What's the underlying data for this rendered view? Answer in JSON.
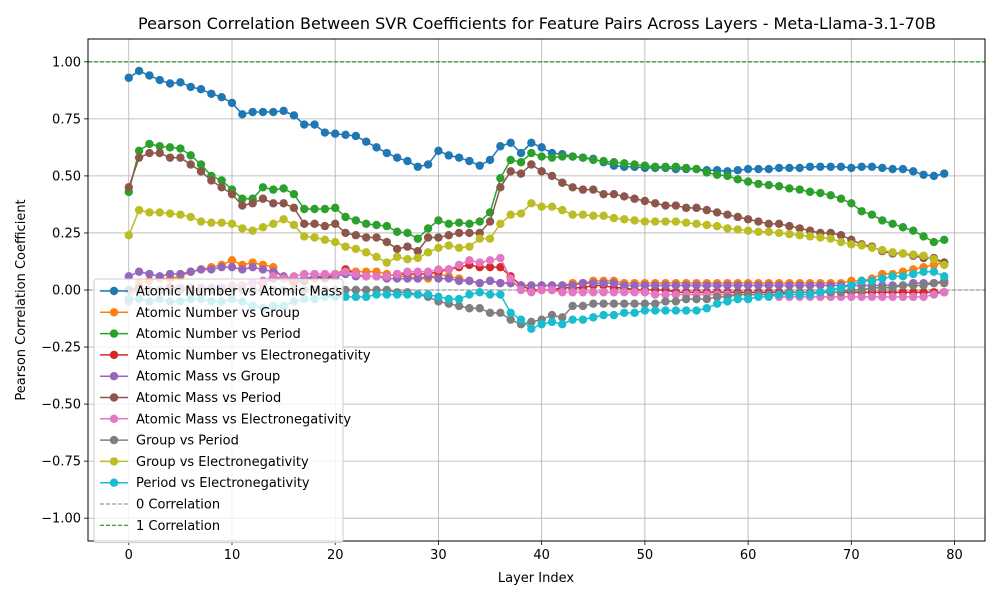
{
  "chart_data": {
    "type": "line",
    "title": "Pearson Correlation Between SVR Coefficients for Feature Pairs Across Layers - Meta-Llama-3.1-70B",
    "xlabel": "Layer Index",
    "ylabel": "Pearson Correlation Coefficient",
    "xlim": [
      -3.95,
      82.95
    ],
    "ylim": [
      -1.1,
      1.1
    ],
    "xticks": [
      0,
      10,
      20,
      30,
      40,
      50,
      60,
      70,
      80
    ],
    "xtick_labels": [
      "0",
      "10",
      "20",
      "30",
      "40",
      "50",
      "60",
      "70",
      "80"
    ],
    "yticks": [
      -1.0,
      -0.75,
      -0.5,
      -0.25,
      0.0,
      0.25,
      0.5,
      0.75,
      1.0
    ],
    "ytick_labels": [
      "−1.00",
      "−0.75",
      "−0.50",
      "−0.25",
      "0.00",
      "0.25",
      "0.50",
      "0.75",
      "1.00"
    ],
    "grid": true,
    "legend_position": "lower-left",
    "x_start": 0,
    "series": [
      {
        "name": "Atomic Number vs Atomic Mass",
        "color": "#1f77b4",
        "values": [
          0.93,
          0.96,
          0.94,
          0.92,
          0.905,
          0.91,
          0.89,
          0.88,
          0.86,
          0.845,
          0.82,
          0.77,
          0.78,
          0.78,
          0.78,
          0.785,
          0.765,
          0.725,
          0.725,
          0.69,
          0.685,
          0.68,
          0.675,
          0.65,
          0.625,
          0.6,
          0.58,
          0.565,
          0.54,
          0.55,
          0.61,
          0.59,
          0.58,
          0.565,
          0.545,
          0.57,
          0.63,
          0.645,
          0.6,
          0.645,
          0.625,
          0.6,
          0.595,
          0.585,
          0.58,
          0.575,
          0.56,
          0.545,
          0.54,
          0.54,
          0.535,
          0.535,
          0.535,
          0.53,
          0.53,
          0.53,
          0.525,
          0.525,
          0.52,
          0.525,
          0.53,
          0.53,
          0.53,
          0.535,
          0.535,
          0.535,
          0.54,
          0.54,
          0.54,
          0.54,
          0.535,
          0.54,
          0.54,
          0.535,
          0.53,
          0.53,
          0.52,
          0.505,
          0.5,
          0.51
        ]
      },
      {
        "name": "Atomic Number vs Group",
        "color": "#ff7f0e",
        "values": [
          -0.05,
          0.03,
          0.04,
          0.05,
          0.05,
          0.06,
          0.08,
          0.09,
          0.1,
          0.11,
          0.13,
          0.11,
          0.12,
          0.11,
          0.1,
          0.05,
          0.03,
          0.04,
          0.05,
          0.06,
          0.07,
          0.09,
          0.08,
          0.08,
          0.08,
          0.07,
          0.06,
          0.06,
          0.05,
          0.05,
          0.07,
          0.06,
          0.05,
          0.04,
          0.03,
          0.04,
          0.03,
          0.03,
          0.02,
          0.02,
          0.02,
          0.02,
          0.02,
          0.03,
          0.03,
          0.04,
          0.04,
          0.04,
          0.03,
          0.03,
          0.03,
          0.03,
          0.03,
          0.03,
          0.03,
          0.03,
          0.03,
          0.03,
          0.03,
          0.03,
          0.03,
          0.03,
          0.03,
          0.03,
          0.03,
          0.03,
          0.03,
          0.03,
          0.03,
          0.03,
          0.04,
          0.04,
          0.05,
          0.07,
          0.07,
          0.08,
          0.09,
          0.1,
          0.11,
          0.12
        ]
      },
      {
        "name": "Atomic Number vs Period",
        "color": "#2ca02c",
        "values": [
          0.43,
          0.61,
          0.64,
          0.63,
          0.625,
          0.62,
          0.59,
          0.55,
          0.5,
          0.48,
          0.44,
          0.4,
          0.4,
          0.45,
          0.44,
          0.445,
          0.42,
          0.355,
          0.355,
          0.355,
          0.36,
          0.32,
          0.305,
          0.29,
          0.285,
          0.28,
          0.255,
          0.25,
          0.225,
          0.27,
          0.305,
          0.29,
          0.295,
          0.29,
          0.3,
          0.34,
          0.49,
          0.57,
          0.56,
          0.6,
          0.585,
          0.58,
          0.585,
          0.585,
          0.58,
          0.57,
          0.565,
          0.56,
          0.555,
          0.55,
          0.545,
          0.54,
          0.54,
          0.54,
          0.535,
          0.53,
          0.515,
          0.505,
          0.5,
          0.485,
          0.475,
          0.465,
          0.46,
          0.455,
          0.445,
          0.44,
          0.43,
          0.425,
          0.415,
          0.4,
          0.38,
          0.345,
          0.33,
          0.305,
          0.29,
          0.275,
          0.26,
          0.235,
          0.21,
          0.22
        ]
      },
      {
        "name": "Atomic Number vs Electronegativity",
        "color": "#d62728",
        "values": [
          0.0,
          0.01,
          0.0,
          0.0,
          0.01,
          0.01,
          0.01,
          0.01,
          0.01,
          0.01,
          0.02,
          0.02,
          0.03,
          0.03,
          0.05,
          0.05,
          0.04,
          0.04,
          0.06,
          0.05,
          0.06,
          0.09,
          0.07,
          0.06,
          0.06,
          0.06,
          0.07,
          0.07,
          0.07,
          0.07,
          0.08,
          0.09,
          0.1,
          0.11,
          0.1,
          0.1,
          0.1,
          0.06,
          0.02,
          0.0,
          0.0,
          0.0,
          0.01,
          0.01,
          0.01,
          0.02,
          0.02,
          0.01,
          0.01,
          0.0,
          0.0,
          0.0,
          0.0,
          -0.01,
          -0.01,
          -0.01,
          -0.01,
          -0.01,
          -0.01,
          -0.01,
          -0.01,
          -0.01,
          -0.01,
          -0.01,
          -0.01,
          -0.01,
          -0.01,
          -0.01,
          -0.01,
          -0.01,
          -0.01,
          -0.01,
          -0.01,
          -0.01,
          -0.01,
          -0.01,
          -0.01,
          -0.01,
          -0.01,
          -0.01
        ]
      },
      {
        "name": "Atomic Mass vs Group",
        "color": "#9467bd",
        "values": [
          0.06,
          0.08,
          0.07,
          0.06,
          0.07,
          0.07,
          0.08,
          0.09,
          0.09,
          0.1,
          0.1,
          0.09,
          0.1,
          0.09,
          0.08,
          0.06,
          0.05,
          0.05,
          0.06,
          0.06,
          0.06,
          0.07,
          0.06,
          0.06,
          0.06,
          0.05,
          0.05,
          0.05,
          0.05,
          0.06,
          0.05,
          0.05,
          0.04,
          0.04,
          0.03,
          0.04,
          0.03,
          0.03,
          0.02,
          0.02,
          0.02,
          0.02,
          0.02,
          0.02,
          0.03,
          0.03,
          0.03,
          0.03,
          0.02,
          0.02,
          0.02,
          0.02,
          0.02,
          0.02,
          0.02,
          0.02,
          0.02,
          0.02,
          0.02,
          0.02,
          0.02,
          0.02,
          0.02,
          0.02,
          0.02,
          0.02,
          0.02,
          0.02,
          0.02,
          0.02,
          0.02,
          0.02,
          0.02,
          0.02,
          0.02,
          0.02,
          0.03,
          0.03,
          0.03,
          0.04
        ]
      },
      {
        "name": "Atomic Mass vs Period",
        "color": "#8c564b",
        "values": [
          0.45,
          0.58,
          0.6,
          0.6,
          0.58,
          0.58,
          0.55,
          0.52,
          0.48,
          0.45,
          0.42,
          0.37,
          0.38,
          0.4,
          0.38,
          0.38,
          0.36,
          0.29,
          0.29,
          0.28,
          0.29,
          0.25,
          0.24,
          0.23,
          0.23,
          0.21,
          0.18,
          0.19,
          0.17,
          0.23,
          0.23,
          0.24,
          0.25,
          0.25,
          0.25,
          0.3,
          0.45,
          0.52,
          0.51,
          0.55,
          0.52,
          0.5,
          0.47,
          0.45,
          0.44,
          0.44,
          0.42,
          0.42,
          0.41,
          0.4,
          0.39,
          0.38,
          0.37,
          0.37,
          0.36,
          0.36,
          0.35,
          0.34,
          0.33,
          0.32,
          0.31,
          0.3,
          0.29,
          0.29,
          0.28,
          0.27,
          0.26,
          0.25,
          0.25,
          0.24,
          0.22,
          0.2,
          0.19,
          0.17,
          0.16,
          0.16,
          0.15,
          0.14,
          0.14,
          0.12
        ]
      },
      {
        "name": "Atomic Mass vs Electronegativity",
        "color": "#e377c2",
        "values": [
          0.0,
          0.0,
          0.0,
          0.0,
          0.0,
          0.01,
          0.01,
          0.01,
          0.01,
          0.01,
          0.02,
          0.02,
          0.03,
          0.04,
          0.06,
          0.05,
          0.06,
          0.07,
          0.07,
          0.07,
          0.07,
          0.08,
          0.07,
          0.06,
          0.06,
          0.06,
          0.07,
          0.08,
          0.08,
          0.08,
          0.09,
          0.09,
          0.11,
          0.13,
          0.12,
          0.13,
          0.14,
          0.05,
          0.0,
          -0.01,
          0.0,
          0.0,
          -0.01,
          -0.01,
          -0.01,
          -0.01,
          -0.01,
          -0.01,
          -0.01,
          -0.01,
          -0.01,
          -0.02,
          -0.02,
          -0.02,
          -0.02,
          -0.02,
          -0.02,
          -0.02,
          -0.02,
          -0.02,
          -0.02,
          -0.02,
          -0.02,
          -0.03,
          -0.03,
          -0.03,
          -0.03,
          -0.03,
          -0.03,
          -0.03,
          -0.03,
          -0.03,
          -0.03,
          -0.03,
          -0.03,
          -0.03,
          -0.03,
          -0.03,
          -0.02,
          -0.01
        ]
      },
      {
        "name": "Group vs Period",
        "color": "#7f7f7f",
        "values": [
          0.0,
          0.0,
          0.0,
          0.0,
          0.0,
          0.0,
          0.0,
          0.0,
          0.0,
          0.0,
          0.0,
          0.0,
          0.0,
          0.0,
          0.0,
          0.0,
          0.0,
          0.0,
          0.0,
          0.0,
          0.0,
          0.0,
          0.0,
          0.0,
          0.0,
          0.0,
          -0.01,
          -0.01,
          -0.02,
          -0.03,
          -0.05,
          -0.06,
          -0.07,
          -0.08,
          -0.08,
          -0.1,
          -0.1,
          -0.13,
          -0.15,
          -0.14,
          -0.13,
          -0.11,
          -0.12,
          -0.07,
          -0.07,
          -0.06,
          -0.06,
          -0.06,
          -0.06,
          -0.06,
          -0.06,
          -0.06,
          -0.05,
          -0.05,
          -0.04,
          -0.04,
          -0.04,
          -0.03,
          -0.03,
          -0.02,
          -0.02,
          -0.02,
          -0.02,
          -0.02,
          -0.01,
          -0.01,
          -0.01,
          -0.01,
          -0.01,
          -0.01,
          0.0,
          0.0,
          0.01,
          0.01,
          0.01,
          0.02,
          0.02,
          0.02,
          0.03,
          0.03
        ]
      },
      {
        "name": "Group vs Electronegativity",
        "color": "#bcbd22",
        "values": [
          0.24,
          0.35,
          0.34,
          0.34,
          0.335,
          0.33,
          0.32,
          0.3,
          0.295,
          0.295,
          0.29,
          0.27,
          0.26,
          0.275,
          0.29,
          0.31,
          0.285,
          0.235,
          0.23,
          0.22,
          0.21,
          0.19,
          0.18,
          0.165,
          0.145,
          0.12,
          0.145,
          0.135,
          0.14,
          0.165,
          0.185,
          0.195,
          0.185,
          0.19,
          0.225,
          0.225,
          0.29,
          0.33,
          0.335,
          0.38,
          0.365,
          0.365,
          0.35,
          0.33,
          0.33,
          0.325,
          0.325,
          0.315,
          0.31,
          0.305,
          0.3,
          0.3,
          0.3,
          0.3,
          0.295,
          0.29,
          0.285,
          0.28,
          0.27,
          0.265,
          0.26,
          0.255,
          0.255,
          0.25,
          0.245,
          0.24,
          0.235,
          0.23,
          0.225,
          0.21,
          0.2,
          0.195,
          0.185,
          0.175,
          0.165,
          0.16,
          0.155,
          0.15,
          0.135,
          0.11
        ]
      },
      {
        "name": "Period vs Electronegativity",
        "color": "#17becf",
        "values": [
          -0.04,
          -0.04,
          -0.05,
          -0.04,
          -0.05,
          -0.05,
          -0.04,
          -0.04,
          -0.05,
          -0.05,
          -0.04,
          -0.05,
          -0.07,
          -0.08,
          -0.07,
          -0.07,
          -0.05,
          -0.04,
          -0.04,
          -0.03,
          -0.03,
          -0.03,
          -0.03,
          -0.03,
          -0.02,
          -0.02,
          -0.02,
          -0.02,
          -0.02,
          -0.02,
          -0.03,
          -0.04,
          -0.04,
          -0.02,
          -0.01,
          -0.02,
          -0.02,
          -0.1,
          -0.13,
          -0.17,
          -0.15,
          -0.14,
          -0.15,
          -0.13,
          -0.13,
          -0.12,
          -0.11,
          -0.11,
          -0.1,
          -0.1,
          -0.09,
          -0.09,
          -0.09,
          -0.09,
          -0.09,
          -0.09,
          -0.08,
          -0.06,
          -0.05,
          -0.04,
          -0.04,
          -0.03,
          -0.03,
          -0.02,
          -0.02,
          -0.02,
          -0.02,
          -0.01,
          0.0,
          0.01,
          0.02,
          0.04,
          0.04,
          0.05,
          0.06,
          0.06,
          0.07,
          0.08,
          0.08,
          0.06
        ]
      }
    ],
    "reference_lines": [
      {
        "name": "0 Correlation",
        "y": 0.0,
        "color": "#808080",
        "dash": "4,2"
      },
      {
        "name": "1 Correlation",
        "y": 1.0,
        "color": "#008000",
        "dash": "4,2"
      }
    ]
  }
}
